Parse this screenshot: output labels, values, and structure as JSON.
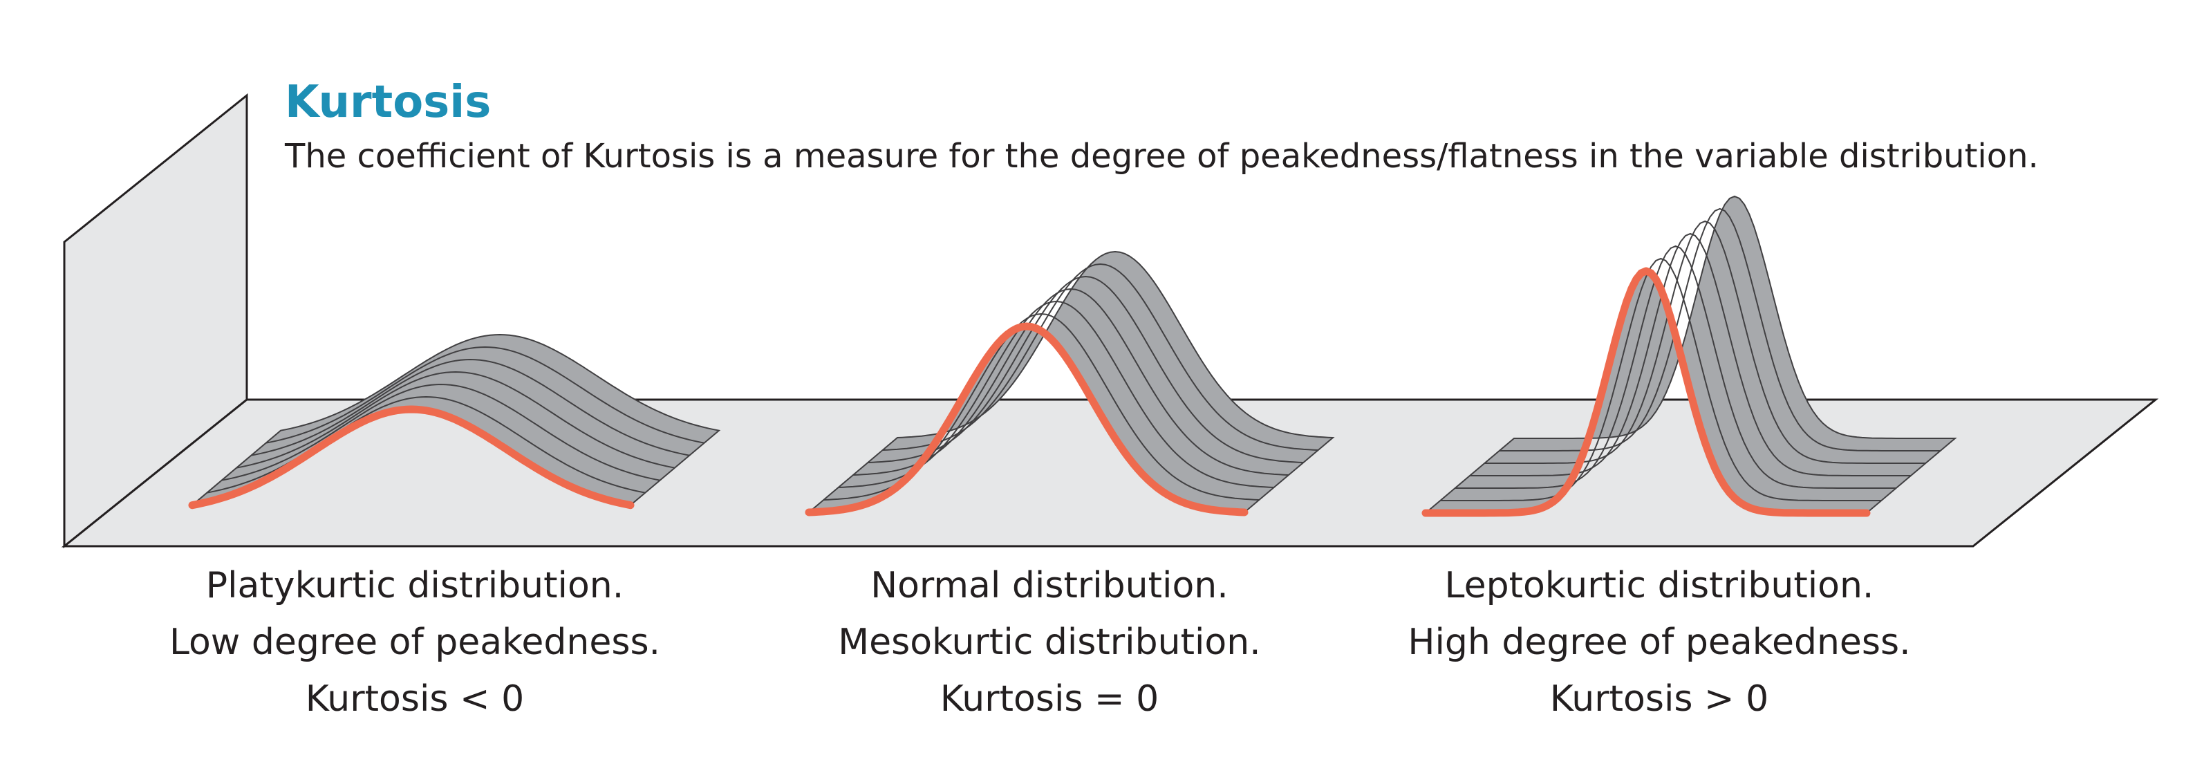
{
  "title": "Kurtosis",
  "subtitle": "The coefficient of Kurtosis is a measure for the degree of peakedness/flatness in the variable distribution.",
  "colors": {
    "title": "#1e8fb5",
    "curve_highlight": "#ee6a4e",
    "surface": "#a7a9ac",
    "surface_stroke": "#414042",
    "panel": "#e6e7e8",
    "text": "#231f20"
  },
  "distributions": [
    {
      "name": "Platykurtic distribution.",
      "description": "Low degree of peakedness.",
      "kurtosis_label": "Kurtosis < 0",
      "peakedness": "low"
    },
    {
      "name": "Normal distribution.",
      "description": "Mesokurtic distribution.",
      "kurtosis_label": "Kurtosis = 0",
      "peakedness": "medium"
    },
    {
      "name": "Leptokurtic distribution.",
      "description": "High degree of peakedness.",
      "kurtosis_label": "Kurtosis > 0",
      "peakedness": "high"
    }
  ]
}
